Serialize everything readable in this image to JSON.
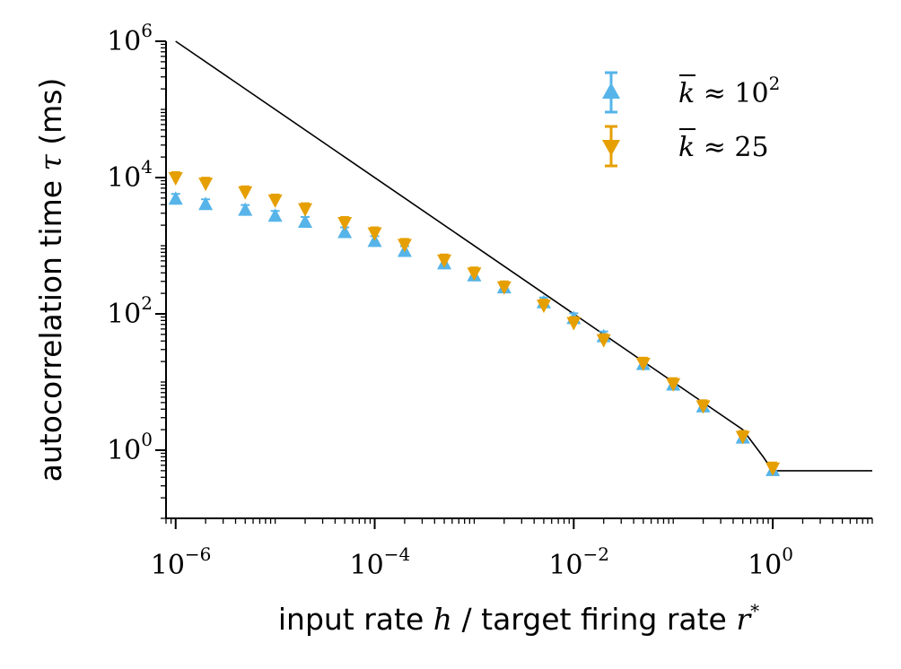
{
  "chart_data": {
    "type": "scatter",
    "xscale": "log",
    "yscale": "log",
    "xlim": [
      8e-07,
      10
    ],
    "ylim": [
      0.1,
      1000000
    ],
    "xlabel": {
      "prefix": "input rate ",
      "var1": "h",
      "mid": " / target firing rate ",
      "var2": "r",
      "var2_sup": "*"
    },
    "ylabel": {
      "prefix": "autocorrelation time ",
      "var": "τ",
      "suffix": " (ms)"
    },
    "xticks": [
      {
        "value": 1e-06,
        "base": "10",
        "exp": "−6"
      },
      {
        "value": 0.0001,
        "base": "10",
        "exp": "−4"
      },
      {
        "value": 0.01,
        "base": "10",
        "exp": "−2"
      },
      {
        "value": 1,
        "base": "10",
        "exp": "0"
      }
    ],
    "yticks": [
      {
        "value": 1,
        "base": "10",
        "exp": "0"
      },
      {
        "value": 100,
        "base": "10",
        "exp": "2"
      },
      {
        "value": 10000,
        "base": "10",
        "exp": "4"
      },
      {
        "value": 1000000,
        "base": "10",
        "exp": "6"
      }
    ],
    "theory_line": {
      "color": "#000000",
      "x": [
        1e-06,
        0.01,
        0.1,
        0.5,
        0.8,
        1.0,
        10
      ],
      "y": [
        1000000,
        100,
        10,
        2,
        0.8,
        0.5,
        0.5
      ]
    },
    "series": [
      {
        "name": "k̄ ≈ 10²",
        "legend": {
          "var": "k",
          "rel": " ≈ ",
          "base": "10",
          "exp": "2"
        },
        "marker": "triangle-up",
        "color": "#56B4E9",
        "x": [
          1e-06,
          2e-06,
          5e-06,
          1e-05,
          2e-05,
          5e-05,
          0.0001,
          0.0002,
          0.0005,
          0.001,
          0.002,
          0.005,
          0.01,
          0.02,
          0.05,
          0.1,
          0.2,
          0.5,
          1.0
        ],
        "y": [
          4800,
          4000,
          3300,
          2700,
          2200,
          1550,
          1150,
          820,
          540,
          360,
          240,
          145,
          85,
          46,
          18,
          9,
          4.3,
          1.5,
          0.5
        ]
      },
      {
        "name": "k̄ ≈ 25",
        "legend": {
          "var": "k",
          "rel": " ≈ ",
          "base": "25",
          "exp": ""
        },
        "marker": "triangle-down",
        "color": "#E69F00",
        "x": [
          1e-06,
          2e-06,
          5e-06,
          1e-05,
          2e-05,
          5e-05,
          0.0001,
          0.0002,
          0.0005,
          0.001,
          0.002,
          0.005,
          0.01,
          0.02,
          0.05,
          0.1,
          0.2,
          0.5,
          1.0
        ],
        "y": [
          10000,
          8300,
          6200,
          4700,
          3500,
          2200,
          1550,
          1050,
          620,
          400,
          250,
          135,
          75,
          42,
          19,
          9.5,
          4.5,
          1.6,
          0.55
        ]
      }
    ],
    "legend_position": "top-right",
    "grid": false
  }
}
